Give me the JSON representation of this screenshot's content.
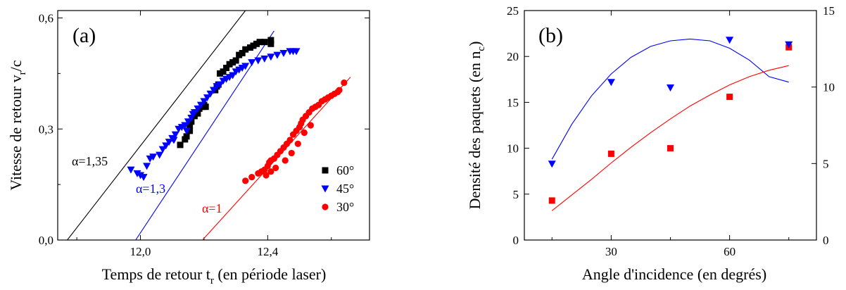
{
  "chart_data": [
    {
      "panel_label": "(a)",
      "type": "scatter",
      "xlabel": "Temps de retour t",
      "xlabel_sub": "r",
      "xlabel_tail": " (en période laser)",
      "ylabel": "Vitesse de retour v",
      "ylabel_sub": "r",
      "ylabel_tail": "/c",
      "xlim": [
        11.74,
        12.72
      ],
      "ylim": [
        0.0,
        0.62
      ],
      "xticks": [
        {
          "v": 12.0,
          "label": "12,0"
        },
        {
          "v": 12.4,
          "label": "12,4"
        }
      ],
      "yticks": [
        {
          "v": 0.0,
          "label": "0,0"
        },
        {
          "v": 0.3,
          "label": "0,3"
        },
        {
          "v": 0.6,
          "label": "0,6"
        }
      ],
      "series": [
        {
          "name": "60°",
          "marker": "square",
          "color": "#000000",
          "points": [
            [
              12.125,
              0.257
            ],
            [
              12.14,
              0.272
            ],
            [
              12.145,
              0.28
            ],
            [
              12.155,
              0.295
            ],
            [
              12.16,
              0.32
            ],
            [
              12.17,
              0.335
            ],
            [
              12.175,
              0.345
            ],
            [
              12.185,
              0.355
            ],
            [
              12.195,
              0.36
            ],
            [
              12.2,
              0.365
            ],
            [
              12.205,
              0.36
            ],
            [
              12.18,
              0.342
            ],
            [
              12.155,
              0.31
            ],
            [
              12.235,
              0.405
            ],
            [
              12.24,
              0.415
            ],
            [
              12.245,
              0.42
            ],
            [
              12.25,
              0.45
            ],
            [
              12.26,
              0.455
            ],
            [
              12.27,
              0.465
            ],
            [
              12.28,
              0.475
            ],
            [
              12.29,
              0.48
            ],
            [
              12.3,
              0.485
            ],
            [
              12.31,
              0.5
            ],
            [
              12.32,
              0.505
            ],
            [
              12.33,
              0.515
            ],
            [
              12.345,
              0.52
            ],
            [
              12.355,
              0.525
            ],
            [
              12.365,
              0.53
            ],
            [
              12.375,
              0.535
            ],
            [
              12.39,
              0.535
            ],
            [
              12.41,
              0.54
            ],
            [
              12.41,
              0.53
            ]
          ]
        },
        {
          "name": "45°",
          "marker": "triangle-down",
          "color": "#0000ff",
          "points": [
            [
              11.97,
              0.19
            ],
            [
              11.99,
              0.18
            ],
            [
              12.0,
              0.175
            ],
            [
              12.01,
              0.17
            ],
            [
              12.02,
              0.2
            ],
            [
              12.03,
              0.22
            ],
            [
              12.04,
              0.225
            ],
            [
              12.06,
              0.23
            ],
            [
              12.07,
              0.245
            ],
            [
              12.08,
              0.255
            ],
            [
              12.09,
              0.265
            ],
            [
              12.1,
              0.275
            ],
            [
              12.11,
              0.285
            ],
            [
              12.12,
              0.3
            ],
            [
              12.13,
              0.305
            ],
            [
              12.14,
              0.31
            ],
            [
              12.15,
              0.32
            ],
            [
              12.16,
              0.33
            ],
            [
              12.17,
              0.345
            ],
            [
              12.18,
              0.355
            ],
            [
              12.19,
              0.365
            ],
            [
              12.2,
              0.375
            ],
            [
              12.21,
              0.385
            ],
            [
              12.22,
              0.395
            ],
            [
              12.23,
              0.405
            ],
            [
              12.24,
              0.415
            ],
            [
              12.25,
              0.42
            ],
            [
              12.26,
              0.43
            ],
            [
              12.27,
              0.435
            ],
            [
              12.28,
              0.44
            ],
            [
              12.29,
              0.445
            ],
            [
              12.3,
              0.455
            ],
            [
              12.31,
              0.46
            ],
            [
              12.32,
              0.465
            ],
            [
              12.33,
              0.47
            ],
            [
              12.35,
              0.48
            ],
            [
              12.37,
              0.485
            ],
            [
              12.39,
              0.49
            ],
            [
              12.41,
              0.495
            ],
            [
              12.43,
              0.5
            ],
            [
              12.45,
              0.505
            ],
            [
              12.47,
              0.51
            ],
            [
              12.48,
              0.51
            ],
            [
              12.49,
              0.51
            ],
            [
              12.145,
              0.295
            ],
            [
              12.105,
              0.27
            ],
            [
              12.165,
              0.34
            ]
          ]
        },
        {
          "name": "30°",
          "marker": "circle",
          "color": "#ff0000",
          "points": [
            [
              12.33,
              0.16
            ],
            [
              12.35,
              0.17
            ],
            [
              12.37,
              0.18
            ],
            [
              12.38,
              0.185
            ],
            [
              12.39,
              0.19
            ],
            [
              12.4,
              0.2
            ],
            [
              12.405,
              0.21
            ],
            [
              12.41,
              0.215
            ],
            [
              12.42,
              0.22
            ],
            [
              12.43,
              0.23
            ],
            [
              12.44,
              0.24
            ],
            [
              12.45,
              0.25
            ],
            [
              12.46,
              0.26
            ],
            [
              12.47,
              0.27
            ],
            [
              12.48,
              0.285
            ],
            [
              12.49,
              0.295
            ],
            [
              12.5,
              0.305
            ],
            [
              12.505,
              0.315
            ],
            [
              12.51,
              0.325
            ],
            [
              12.52,
              0.335
            ],
            [
              12.53,
              0.345
            ],
            [
              12.54,
              0.355
            ],
            [
              12.55,
              0.36
            ],
            [
              12.56,
              0.365
            ],
            [
              12.57,
              0.375
            ],
            [
              12.58,
              0.38
            ],
            [
              12.59,
              0.385
            ],
            [
              12.6,
              0.39
            ],
            [
              12.61,
              0.395
            ],
            [
              12.62,
              0.4
            ],
            [
              12.625,
              0.405
            ],
            [
              12.64,
              0.425
            ],
            [
              12.395,
              0.175
            ],
            [
              12.41,
              0.185
            ],
            [
              12.425,
              0.195
            ],
            [
              12.455,
              0.215
            ],
            [
              12.475,
              0.235
            ],
            [
              12.495,
              0.26
            ],
            [
              12.515,
              0.29
            ],
            [
              12.535,
              0.31
            ]
          ]
        }
      ],
      "fit_lines": [
        {
          "label": "α=1,35",
          "color": "#000000",
          "x": [
            11.77,
            12.33
          ],
          "y": [
            0.0,
            0.62
          ]
        },
        {
          "label": "α=1,3",
          "color": "#0000ff",
          "x": [
            11.985,
            12.42
          ],
          "y": [
            0.0,
            0.565
          ]
        },
        {
          "label": "α=1",
          "color": "#ff0000",
          "x": [
            12.195,
            12.66
          ],
          "y": [
            0.0,
            0.44
          ]
        }
      ],
      "legend_position": "lower-right"
    },
    {
      "panel_label": "(b)",
      "type": "scatter",
      "xlabel": "Angle d'incidence (en degrés)",
      "ylabel": "Densité des paquets (en n",
      "ylabel_sub": "c",
      "ylabel_tail": ")",
      "xlim": [
        8,
        82
      ],
      "ylim_left": [
        0,
        25
      ],
      "ylim_right": [
        0,
        15
      ],
      "xticks": [
        {
          "v": 30,
          "label": "30"
        },
        {
          "v": 60,
          "label": "60"
        }
      ],
      "yticks_left": [
        {
          "v": 0,
          "label": "0"
        },
        {
          "v": 5,
          "label": "5"
        },
        {
          "v": 10,
          "label": "10"
        },
        {
          "v": 15,
          "label": "15"
        },
        {
          "v": 20,
          "label": "20"
        },
        {
          "v": 25,
          "label": "25"
        }
      ],
      "yticks_right": [
        {
          "v": 0,
          "label": "0"
        },
        {
          "v": 5,
          "label": "5"
        },
        {
          "v": 10,
          "label": "10"
        },
        {
          "v": 15,
          "label": "15"
        }
      ],
      "series": [
        {
          "marker": "square",
          "color": "#ff0000",
          "axis": "left",
          "points": [
            [
              15,
              4.3
            ],
            [
              30,
              9.4
            ],
            [
              45,
              10.0
            ],
            [
              60,
              15.6
            ],
            [
              75,
              21.0
            ]
          ]
        },
        {
          "marker": "triangle-down",
          "color": "#0000ff",
          "axis": "left",
          "points": [
            [
              15,
              8.3
            ],
            [
              30,
              17.2
            ],
            [
              45,
              16.6
            ],
            [
              60,
              21.8
            ],
            [
              75,
              21.3
            ]
          ]
        }
      ],
      "fit_curves": [
        {
          "color": "#0000ff",
          "x": [
            15,
            20,
            25,
            30,
            35,
            40,
            45,
            50,
            55,
            60,
            65,
            70,
            75
          ],
          "y": [
            8.8,
            12.6,
            15.7,
            18.1,
            19.9,
            21.1,
            21.7,
            21.9,
            21.7,
            20.9,
            19.6,
            17.8,
            17.2
          ]
        },
        {
          "color": "#ff0000",
          "x": [
            15,
            20,
            25,
            30,
            35,
            40,
            45,
            50,
            55,
            60,
            65,
            70,
            75
          ],
          "y": [
            3.2,
            4.9,
            6.6,
            8.4,
            10.1,
            11.7,
            13.2,
            14.6,
            15.8,
            16.9,
            17.8,
            18.5,
            19.0
          ]
        }
      ]
    }
  ]
}
